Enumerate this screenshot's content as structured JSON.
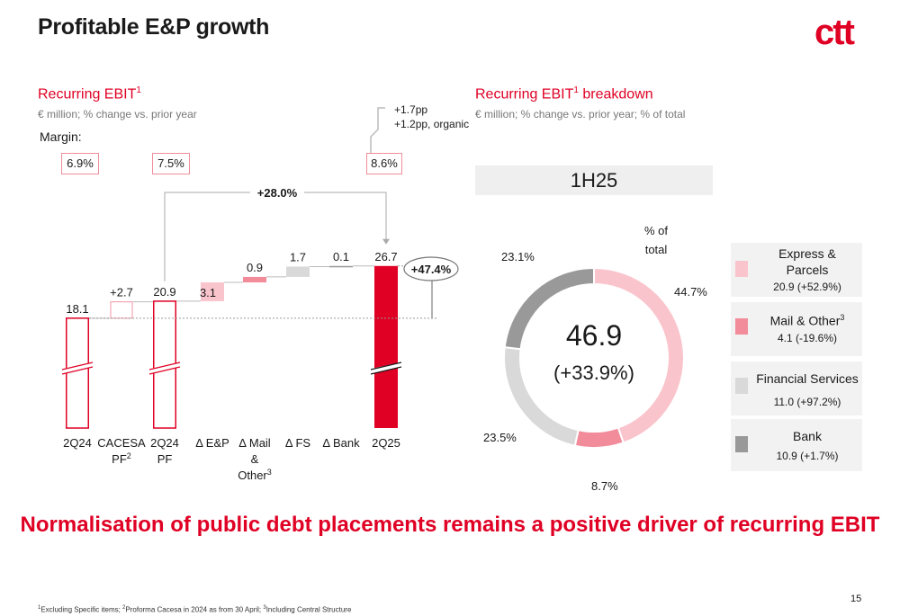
{
  "page": {
    "title": "Profitable E&P growth",
    "logo_text": "ctt",
    "tagline": "Normalisation of public debt placements remains a positive driver of recurring EBIT",
    "page_number": "15",
    "footnote": {
      "p1": "Excluding Specific items; ",
      "p2": "Proforma Cacesa in 2024 as from 30 April; ",
      "p3": "Including Central Structure",
      "m1": "1",
      "m2": "2",
      "m3": "3"
    }
  },
  "left": {
    "heading": "Recurring EBIT",
    "heading_sup": "1",
    "subtitle": "€ million; % change vs. prior year",
    "margin_label": "Margin:",
    "margins": [
      "6.9%",
      "7.5%",
      "8.6%"
    ],
    "pp_note": {
      "line1": "+1.7pp",
      "line2": "+1.2pp, organic"
    }
  },
  "right": {
    "heading": "Recurring EBIT",
    "heading_sup": "1",
    "heading_tail": " breakdown",
    "subtitle": "€ million; % change vs. prior year; % of total",
    "period": "1H25",
    "pct_of_total": {
      "line1": "% of",
      "line2": "total"
    }
  },
  "chart_data": [
    {
      "type": "bar",
      "subtype": "waterfall",
      "title": "Recurring EBIT",
      "unit": "€ million",
      "categories": [
        "2Q24",
        "CACESA PF",
        "2Q24 PF",
        "Δ E&P",
        "Δ Mail & Other",
        "Δ FS",
        "Δ Bank",
        "2Q25"
      ],
      "category_sups": [
        "",
        "2",
        "",
        "",
        "3",
        "",
        "",
        ""
      ],
      "values": [
        18.1,
        2.7,
        20.9,
        3.1,
        0.9,
        1.7,
        0.1,
        26.7
      ],
      "value_labels": [
        "18.1",
        "+2.7",
        "20.9",
        "3.1",
        "0.9",
        "1.7",
        "0.1",
        "26.7"
      ],
      "kinds": [
        "total",
        "delta",
        "total",
        "delta",
        "delta",
        "delta",
        "delta",
        "total"
      ],
      "annotations": {
        "growth_pf": "+28.0%",
        "growth_total": "+47.4%"
      },
      "colors": {
        "outline": "#df0024",
        "final": "#df0024",
        "ep": "#f9c4cc",
        "mail": "#f28c9b",
        "fs": "#d9d9d9",
        "bank": "#999999",
        "cacesa": "#f5a6b3"
      }
    },
    {
      "type": "pie",
      "subtype": "donut",
      "title": "Recurring EBIT breakdown",
      "center_value": "46.9",
      "center_change": "(+33.9%)",
      "slices": [
        {
          "name": "Express & Parcels",
          "value": 20.9,
          "change": "+52.9%",
          "value_label": "20.9 (+52.9%)",
          "share": 44.7,
          "share_label": "44.7%",
          "color": "#fac4cc"
        },
        {
          "name": "Mail & Other",
          "name_sup": "3",
          "value": 4.1,
          "change": "-19.6%",
          "value_label": "4.1 (-19.6%)",
          "share": 8.7,
          "share_label": "8.7%",
          "color": "#f28c9b"
        },
        {
          "name": "Financial Services",
          "value": 11.0,
          "change": "+97.2%",
          "value_label": "11.0 (+97.2%)",
          "share": 23.5,
          "share_label": "23.5%",
          "color": "#d9d9d9"
        },
        {
          "name": "Bank",
          "value": 10.9,
          "change": "+1.7%",
          "value_label": "10.9 (+1.7%)",
          "share": 23.1,
          "share_label": "23.1%",
          "color": "#999999"
        }
      ]
    }
  ]
}
